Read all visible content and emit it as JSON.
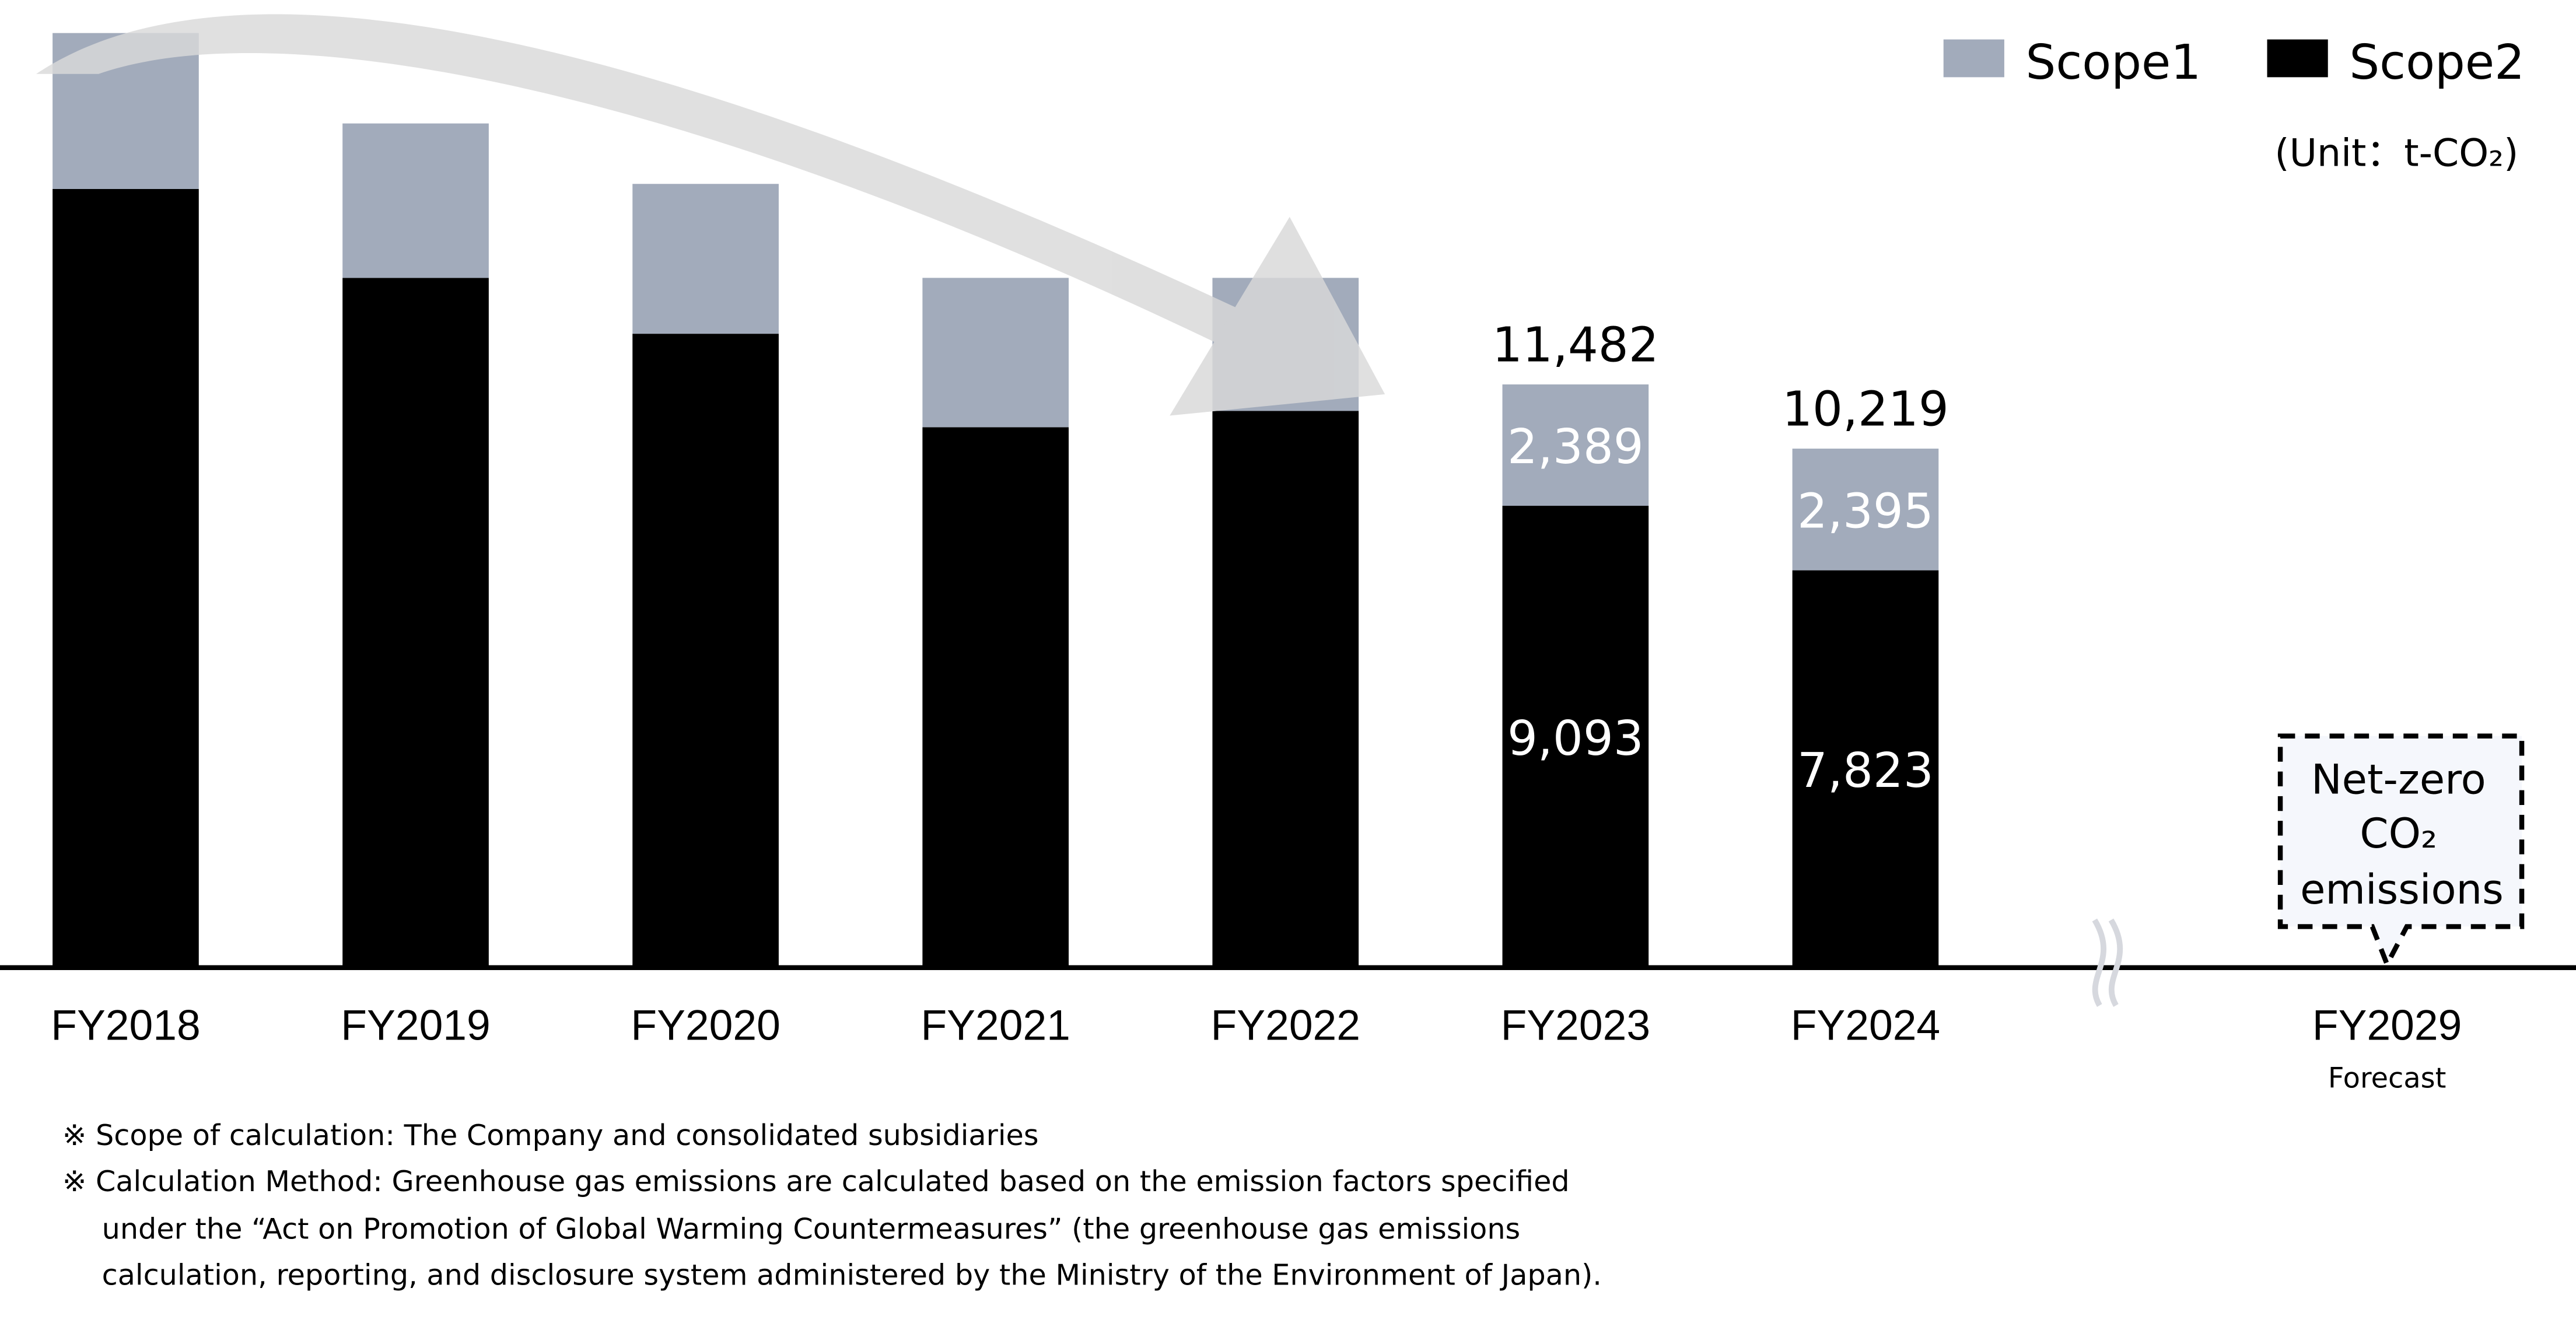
{
  "chart_data": {
    "type": "bar",
    "stacked": true,
    "unit_label": "(Unit：t-CO₂)",
    "categories": [
      "FY2018",
      "FY2019",
      "FY2020",
      "FY2021",
      "FY2022",
      "FY2023",
      "FY2024"
    ],
    "series": [
      {
        "name": "Scope1",
        "color": "#a2abbb",
        "values": [
          3070,
          3040,
          2950,
          2940,
          2620,
          2389,
          2395
        ]
      },
      {
        "name": "Scope2",
        "color": "#000000",
        "values": [
          15330,
          13580,
          12480,
          10640,
          10960,
          9093,
          7823
        ]
      }
    ],
    "data_labels": {
      "FY2023": {
        "total": "11,482",
        "scope1": "2,389",
        "scope2": "9,093"
      },
      "FY2024": {
        "total": "10,219",
        "scope1": "2,395",
        "scope2": "7,823"
      }
    },
    "forecast": {
      "category": "FY2029",
      "sublabel": "Forecast",
      "callout_lines": [
        "Net-zero",
        "CO₂",
        "emissions"
      ],
      "callout_fill": "#f5f7fc"
    },
    "legend_position": "top-right",
    "grid": false,
    "arrow_color": "#d9d9d9",
    "ylim": [
      0,
      19000
    ]
  },
  "footnotes": [
    "※ Scope of calculation: The Company and consolidated subsidiaries",
    "※ Calculation Method: Greenhouse gas emissions are calculated based on the emission factors specified",
    "under the “Act on Promotion of Global Warming Countermeasures” (the greenhouse gas emissions",
    "calculation, reporting, and disclosure system administered by the Ministry of the Environment of Japan)."
  ]
}
